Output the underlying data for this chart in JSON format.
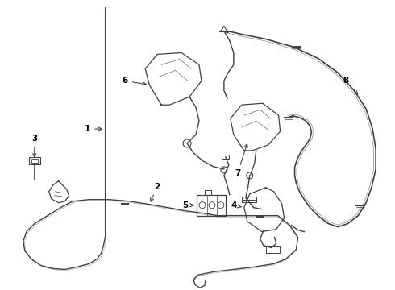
{
  "bg_color": "#ffffff",
  "line_color": "#404040",
  "label_color": "#000000",
  "figsize": [
    4.9,
    3.6
  ],
  "dpi": 100,
  "lw_cable": 1.0,
  "lw_part": 0.9,
  "label_fontsize": 7.5
}
